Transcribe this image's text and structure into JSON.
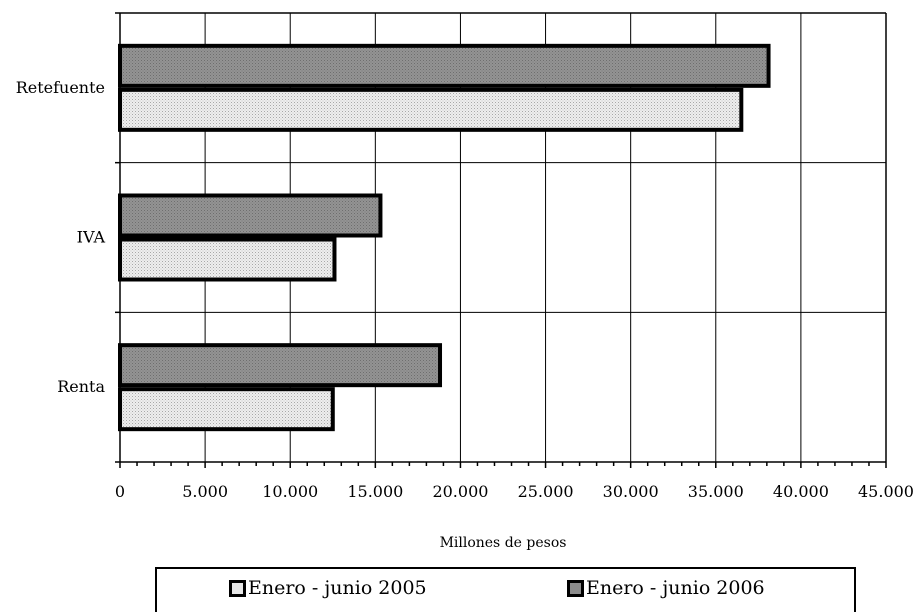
{
  "chart_data": {
    "type": "bar",
    "orientation": "horizontal",
    "categories": [
      "Retefuente",
      "IVA",
      "Renta"
    ],
    "series": [
      {
        "name": "Enero - junio 2005",
        "color": "#e0e0e0",
        "values": [
          36500,
          12600,
          12500
        ]
      },
      {
        "name": "Enero - junio 2006",
        "color": "#8c8c8c",
        "values": [
          38100,
          15300,
          18800
        ]
      }
    ],
    "xlabel": "Millones de pesos",
    "xlim": [
      0,
      45000
    ],
    "xticks": [
      0,
      5000,
      10000,
      15000,
      20000,
      25000,
      30000,
      35000,
      40000,
      45000
    ],
    "xtick_labels": [
      "0",
      "5.000",
      "10.000",
      "15.000",
      "20.000",
      "25.000",
      "30.000",
      "35.000",
      "40.000",
      "45.000"
    ],
    "grid": true,
    "legend_position": "bottom"
  }
}
